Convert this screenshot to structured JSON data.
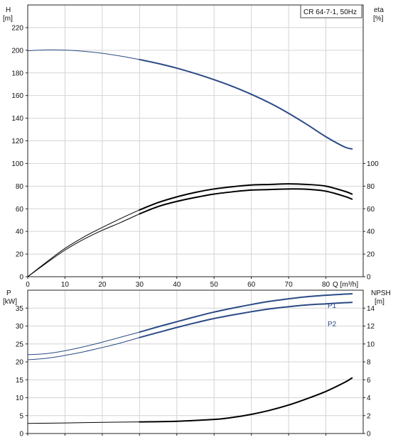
{
  "chart_data": [
    {
      "type": "line",
      "title": "CR 64-7-1, 50Hz",
      "xlabel": "Q [m³/h]",
      "ylabel": "H",
      "ylabel_unit": "[m]",
      "y2label": "eta",
      "y2label_unit": "[%]",
      "xlim": [
        0,
        90
      ],
      "ylim": [
        0,
        240
      ],
      "y2lim": [
        0,
        240
      ],
      "x_ticks": [
        0,
        10,
        20,
        30,
        40,
        50,
        60,
        70,
        80
      ],
      "y_ticks": [
        0,
        20,
        40,
        60,
        80,
        100,
        120,
        140,
        160,
        180,
        200,
        220
      ],
      "y2_ticks": [
        0,
        20,
        40,
        60,
        80,
        100
      ],
      "grid": true,
      "series": [
        {
          "axis": "left",
          "color": "#2b4a86",
          "x": [
            0,
            5,
            10,
            15,
            20,
            25,
            30,
            35,
            40,
            45,
            50,
            55,
            60,
            65,
            70,
            75,
            80,
            85,
            87
          ],
          "y": [
            199.6,
            200.3,
            200.1,
            199.1,
            197.3,
            194.8,
            191.8,
            188.3,
            184.2,
            179.4,
            174.0,
            168.0,
            161.1,
            153.3,
            144.3,
            134.3,
            123.6,
            114.6,
            112.9
          ]
        },
        {
          "axis": "right",
          "color": "#000000",
          "x": [
            0,
            5,
            10,
            15,
            20,
            25,
            30,
            35,
            40,
            45,
            50,
            55,
            60,
            65,
            70,
            75,
            80,
            85,
            87
          ],
          "y": [
            0,
            12,
            23.5,
            33,
            41,
            48,
            55.5,
            62,
            66.5,
            70,
            73,
            75,
            76.5,
            77,
            77.5,
            77.2,
            75.5,
            71,
            68.5
          ]
        },
        {
          "axis": "right",
          "color": "#000000",
          "x": [
            0,
            5,
            10,
            15,
            20,
            25,
            30,
            35,
            40,
            45,
            50,
            55,
            60,
            65,
            70,
            75,
            80,
            85,
            87
          ],
          "y": [
            0,
            12.8,
            25,
            35,
            43.5,
            51.5,
            59,
            65.5,
            70.5,
            74.5,
            77.5,
            79.5,
            81,
            81.5,
            82,
            81.5,
            80,
            75.5,
            73
          ]
        }
      ]
    },
    {
      "type": "line",
      "ylabel": "P",
      "ylabel_unit": "[kW]",
      "y2label": "NPSH",
      "y2label_unit": "[m]",
      "xlim": [
        0,
        90
      ],
      "ylim": [
        0,
        40
      ],
      "y2lim": [
        0,
        16
      ],
      "y_ticks": [
        0,
        5,
        10,
        15,
        20,
        25,
        30,
        35
      ],
      "y2_ticks": [
        0,
        2,
        4,
        6,
        8,
        10,
        12,
        14
      ],
      "grid": true,
      "series": [
        {
          "name": "P1",
          "axis": "left",
          "color": "#2b4a86",
          "x": [
            0,
            5,
            10,
            15,
            20,
            25,
            30,
            35,
            40,
            45,
            50,
            55,
            60,
            65,
            70,
            75,
            80,
            85,
            87
          ],
          "y": [
            22.0,
            22.3,
            23.1,
            24.2,
            25.5,
            26.9,
            28.3,
            29.8,
            31.2,
            32.6,
            33.9,
            35.0,
            36.0,
            36.9,
            37.6,
            38.2,
            38.6,
            38.9,
            39.0
          ]
        },
        {
          "name": "P2",
          "axis": "left",
          "color": "#2b4a86",
          "x": [
            0,
            5,
            10,
            15,
            20,
            25,
            30,
            35,
            40,
            45,
            50,
            55,
            60,
            65,
            70,
            75,
            80,
            85,
            87
          ],
          "y": [
            20.6,
            21.0,
            21.8,
            22.8,
            24.0,
            25.3,
            26.8,
            28.2,
            29.6,
            30.9,
            32.1,
            33.1,
            34.0,
            34.8,
            35.4,
            35.9,
            36.2,
            36.5,
            36.6
          ]
        },
        {
          "axis": "right",
          "color": "#000000",
          "x": [
            0,
            10,
            20,
            30,
            40,
            50,
            55,
            60,
            65,
            70,
            75,
            80,
            85,
            87
          ],
          "y": [
            1.13,
            1.18,
            1.25,
            1.3,
            1.37,
            1.57,
            1.8,
            2.14,
            2.6,
            3.18,
            3.9,
            4.7,
            5.7,
            6.2
          ]
        }
      ]
    }
  ]
}
